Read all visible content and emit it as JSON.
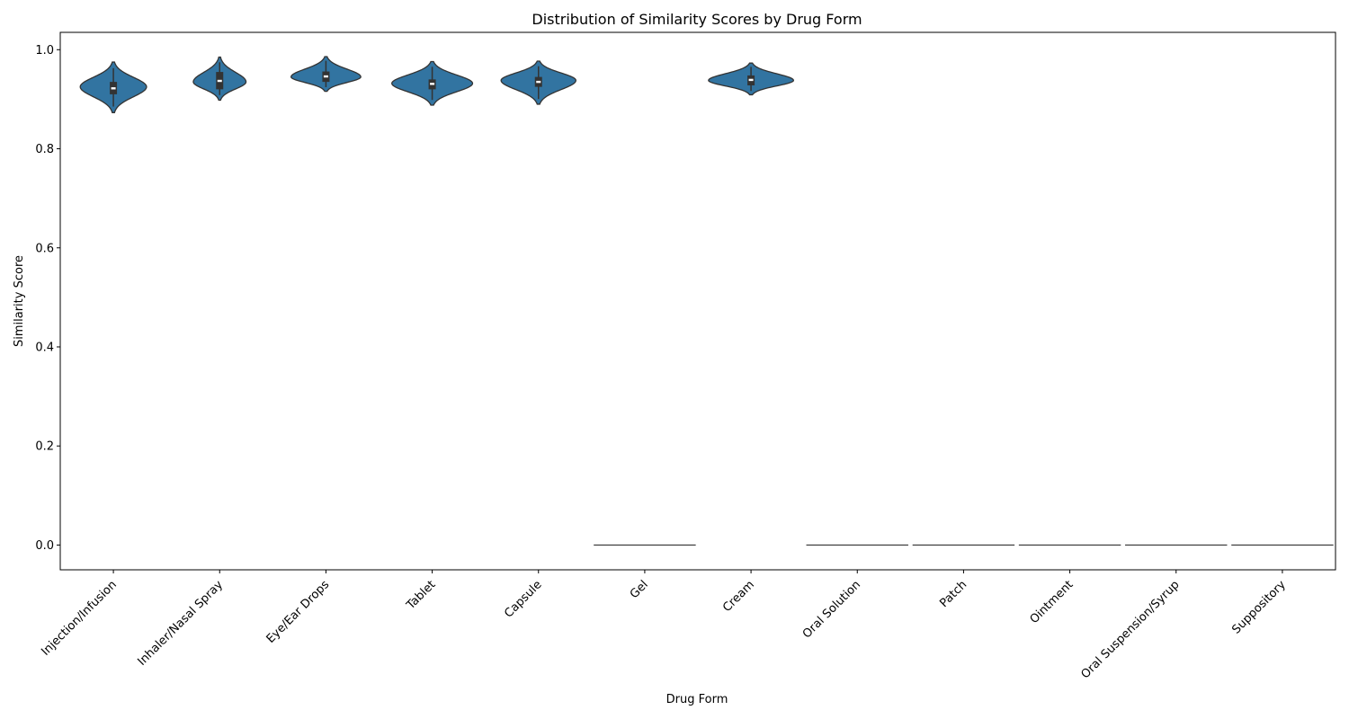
{
  "chart_data": {
    "type": "violin",
    "title": "Distribution of Similarity Scores by Drug Form",
    "xlabel": "Drug Form",
    "ylabel": "Similarity Score",
    "ylim": [
      -0.05,
      1.035
    ],
    "yticks": [
      "0.0",
      "0.2",
      "0.4",
      "0.6",
      "0.8",
      "1.0"
    ],
    "grid": false,
    "legend": "none",
    "color": "#3274a1",
    "edge_color": "#333333",
    "categories": [
      "Injection/Infusion",
      "Inhaler/Nasal Spray",
      "Eye/Ear Drops",
      "Tablet",
      "Capsule",
      "Gel",
      "Cream",
      "Oral Solution",
      "Patch",
      "Ointment",
      "Oral Suspension/Syrup",
      "Suppository"
    ],
    "distributions": [
      {
        "min": 0.873,
        "q1": 0.91,
        "median": 0.922,
        "q3": 0.935,
        "max": 0.975,
        "mode": 0.925,
        "max_density": 0.78
      },
      {
        "min": 0.898,
        "q1": 0.92,
        "median": 0.937,
        "q3": 0.955,
        "max": 0.985,
        "mode": 0.935,
        "max_density": 0.62
      },
      {
        "min": 0.916,
        "q1": 0.935,
        "median": 0.946,
        "q3": 0.956,
        "max": 0.986,
        "mode": 0.945,
        "max_density": 0.82
      },
      {
        "min": 0.888,
        "q1": 0.92,
        "median": 0.931,
        "q3": 0.94,
        "max": 0.976,
        "mode": 0.932,
        "max_density": 0.95
      },
      {
        "min": 0.89,
        "q1": 0.925,
        "median": 0.935,
        "q3": 0.945,
        "max": 0.977,
        "mode": 0.938,
        "max_density": 0.88
      },
      {
        "constant": 0.0
      },
      {
        "min": 0.909,
        "q1": 0.928,
        "median": 0.939,
        "q3": 0.948,
        "max": 0.973,
        "mode": 0.938,
        "max_density": 1.0
      },
      {
        "constant": 0.0
      },
      {
        "constant": 0.0
      },
      {
        "constant": 0.0
      },
      {
        "constant": 0.0
      },
      {
        "constant": 0.0
      }
    ]
  }
}
